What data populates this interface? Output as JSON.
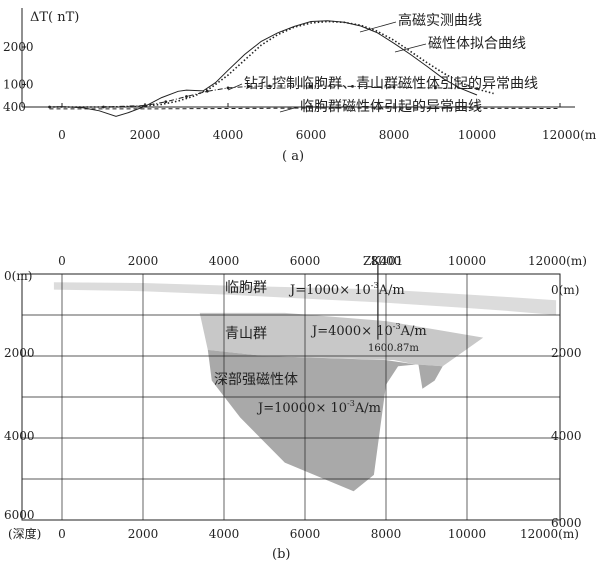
{
  "chart_data": [
    {
      "panel": "(a)",
      "type": "line",
      "ylabel": "ΔT( nT)",
      "xlabel_unit": "(m)",
      "x_ticks": [
        0,
        2000,
        4000,
        6000,
        8000,
        10000,
        12000
      ],
      "x_tick_labels": [
        "0",
        "2000",
        "4000",
        "6000",
        "8000",
        "10000",
        "12000(m)"
      ],
      "y_ticks": [
        400,
        1000,
        2000
      ],
      "y_tick_labels": [
        "400",
        "1000",
        "2000"
      ],
      "xlim": [
        -300,
        12800
      ],
      "ylim": [
        0,
        2800
      ],
      "series": [
        {
          "name": "高磁实测曲线",
          "style": "solid",
          "points": [
            [
              -300,
              400
            ],
            [
              0,
              410
            ],
            [
              500,
              380
            ],
            [
              900,
              300
            ],
            [
              1300,
              150
            ],
            [
              1600,
              250
            ],
            [
              2000,
              420
            ],
            [
              2400,
              650
            ],
            [
              2800,
              820
            ],
            [
              3000,
              850
            ],
            [
              3400,
              830
            ],
            [
              3700,
              1050
            ],
            [
              4000,
              1380
            ],
            [
              4400,
              1800
            ],
            [
              4800,
              2150
            ],
            [
              5200,
              2380
            ],
            [
              5600,
              2550
            ],
            [
              6000,
              2680
            ],
            [
              6400,
              2700
            ],
            [
              6800,
              2660
            ],
            [
              7200,
              2560
            ],
            [
              7600,
              2380
            ],
            [
              8000,
              2100
            ],
            [
              8400,
              1800
            ],
            [
              8800,
              1480
            ],
            [
              9200,
              1150
            ],
            [
              9600,
              900
            ],
            [
              10000,
              720
            ]
          ]
        },
        {
          "name": "磁性体拟合曲线",
          "style": "dotted",
          "points": [
            [
              -300,
              400
            ],
            [
              0,
              400
            ],
            [
              1000,
              400
            ],
            [
              1800,
              410
            ],
            [
              2400,
              470
            ],
            [
              2800,
              560
            ],
            [
              3200,
              700
            ],
            [
              3600,
              920
            ],
            [
              4000,
              1250
            ],
            [
              4400,
              1650
            ],
            [
              4800,
              2050
            ],
            [
              5200,
              2330
            ],
            [
              5600,
              2530
            ],
            [
              6000,
              2640
            ],
            [
              6400,
              2680
            ],
            [
              6800,
              2660
            ],
            [
              7200,
              2580
            ],
            [
              7600,
              2420
            ],
            [
              8000,
              2180
            ],
            [
              8400,
              1880
            ],
            [
              8800,
              1580
            ],
            [
              9200,
              1300
            ],
            [
              9600,
              1050
            ],
            [
              10000,
              880
            ],
            [
              10400,
              760
            ]
          ]
        },
        {
          "name": "钻孔控制临朐群、青山群磁性体引起的异常曲线",
          "style": "dash-dot",
          "points": [
            [
              -300,
              400
            ],
            [
              1000,
              400
            ],
            [
              2000,
              440
            ],
            [
              2500,
              540
            ],
            [
              3000,
              680
            ],
            [
              3500,
              820
            ],
            [
              4000,
              910
            ],
            [
              4500,
              950
            ],
            [
              5000,
              960
            ],
            [
              6000,
              960
            ],
            [
              7000,
              950
            ],
            [
              8000,
              930
            ],
            [
              9000,
              910
            ],
            [
              10000,
              890
            ]
          ]
        },
        {
          "name": "临朐群磁性体引起的异常曲线",
          "style": "dashed",
          "points": [
            [
              -300,
              350
            ],
            [
              2000,
              350
            ],
            [
              4000,
              360
            ],
            [
              6000,
              370
            ],
            [
              8000,
              370
            ],
            [
              10000,
              365
            ],
            [
              12000,
              360
            ]
          ]
        }
      ],
      "annotations": [
        "高磁实测曲线",
        "磁性体拟合曲线",
        "钻孔控制临朐群、青山群磁性体引起的异常曲线",
        "临朐群磁性体引起的异常曲线"
      ]
    },
    {
      "panel": "(b)",
      "type": "cross-section",
      "x_ticks": [
        0,
        2000,
        4000,
        6000,
        8000,
        10000,
        12000
      ],
      "x_tick_labels_top": [
        "0",
        "2000",
        "4000",
        "6000",
        "8000",
        "10000",
        "12000(m)"
      ],
      "x_tick_labels_bottom": [
        "0",
        "2000",
        "4000",
        "6000",
        "8000",
        "10000",
        "12000(m)"
      ],
      "depth_ticks": [
        0,
        2000,
        4000,
        6000
      ],
      "depth_labels_left": [
        "0(m)",
        "2000",
        "4000",
        "6000"
      ],
      "depth_labels_right": [
        "0(m)",
        "2000",
        "4000",
        "6000"
      ],
      "depth_axis_label": "(深度)",
      "xlim": [
        0,
        12000
      ],
      "depth_lim": [
        0,
        6000
      ],
      "borehole": {
        "name": "ZK401",
        "x": 7800,
        "depth_label": "1600.87m"
      },
      "bodies": [
        {
          "name": "临朐群",
          "magnetization": "J=1000× 10",
          "exponent": "-3",
          "unit": "A/m",
          "shade": "#dcdcdc",
          "outline": [
            [
              -200,
              200
            ],
            [
              2000,
              220
            ],
            [
              4000,
              280
            ],
            [
              6000,
              330
            ],
            [
              8000,
              380
            ],
            [
              10000,
              500
            ],
            [
              11000,
              560
            ],
            [
              12200,
              640
            ],
            [
              12200,
              1000
            ],
            [
              11000,
              900
            ],
            [
              10000,
              830
            ],
            [
              8000,
              700
            ],
            [
              6000,
              600
            ],
            [
              4000,
              500
            ],
            [
              2000,
              420
            ],
            [
              -200,
              380
            ]
          ]
        },
        {
          "name": "青山群",
          "magnetization": "J=4000× 10",
          "exponent": "-3",
          "unit": "A/m",
          "shade": "#c8c8c8",
          "outline": [
            [
              3400,
              950
            ],
            [
              5500,
              950
            ],
            [
              8000,
              1150
            ],
            [
              10400,
              1550
            ],
            [
              9400,
              2250
            ],
            [
              8700,
              2200
            ],
            [
              8200,
              2100
            ],
            [
              5000,
              2000
            ],
            [
              3600,
              1850
            ]
          ]
        },
        {
          "name": "深部强磁性体",
          "magnetization": "J=10000× 10",
          "exponent": "-3",
          "unit": "A/m",
          "shade": "#a9a9a9",
          "outline": [
            [
              3600,
              1850
            ],
            [
              5000,
              2000
            ],
            [
              8000,
              2100
            ],
            [
              8700,
              2200
            ],
            [
              9400,
              2250
            ],
            [
              9200,
              2600
            ],
            [
              8900,
              2800
            ],
            [
              8800,
              2200
            ],
            [
              8300,
              2250
            ],
            [
              8000,
              2700
            ],
            [
              7700,
              4900
            ],
            [
              7200,
              5300
            ],
            [
              5500,
              4600
            ],
            [
              4400,
              3500
            ],
            [
              3700,
              2600
            ]
          ]
        }
      ]
    }
  ],
  "captions": {
    "a": "( a)",
    "b": "(b)"
  },
  "colors": {
    "axis": "#222222",
    "grid": "#222222",
    "curve": "#222222"
  }
}
